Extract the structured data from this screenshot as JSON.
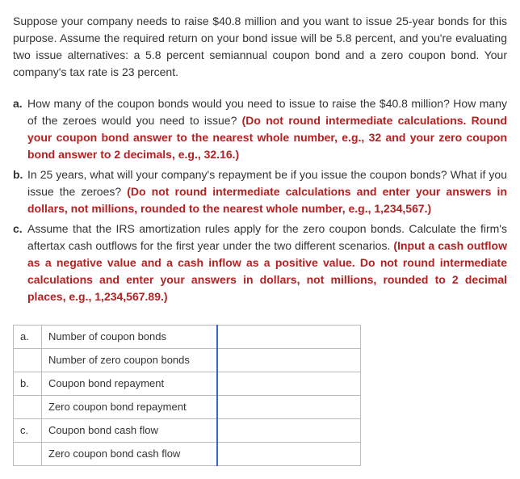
{
  "intro": "Suppose your company needs to raise $40.8 million and you want to issue 25-year bonds for this purpose. Assume the required return on your bond issue will be 5.8 percent, and you're evaluating two issue alternatives: a 5.8 percent semiannual coupon bond and a zero coupon bond. Your company's tax rate is 23 percent.",
  "questions": [
    {
      "letter": "a.",
      "plain": "How many of the coupon bonds would you need to issue to raise the $40.8 million? How many of the zeroes would you need to issue? ",
      "emph": "(Do not round intermediate calculations. Round your coupon bond answer to the nearest whole number, e.g., 32 and your zero coupon bond answer to 2 decimals, e.g., 32.16.)"
    },
    {
      "letter": "b.",
      "plain": "In 25 years, what will your company's repayment be if you issue the coupon bonds? What if you issue the zeroes? ",
      "emph": "(Do not round intermediate calculations and enter your answers in dollars, not millions, rounded to the nearest whole number, e.g., 1,234,567.)"
    },
    {
      "letter": "c.",
      "plain": "Assume that the IRS amortization rules apply for the zero coupon bonds. Calculate the firm's aftertax cash outflows for the first year under the two different scenarios. ",
      "emph": "(Input a cash outflow as a negative value and a cash inflow as a positive value. Do not round intermediate calculations and enter your answers in dollars, not millions, rounded to 2 decimal places, e.g., 1,234,567.89.)"
    }
  ],
  "table": {
    "rows": [
      {
        "letter": "a.",
        "label": "Number of coupon bonds",
        "value": ""
      },
      {
        "letter": "",
        "label": "Number of zero coupon bonds",
        "value": ""
      },
      {
        "letter": "b.",
        "label": "Coupon bond repayment",
        "value": ""
      },
      {
        "letter": "",
        "label": "Zero coupon bond repayment",
        "value": ""
      },
      {
        "letter": "c.",
        "label": "Coupon bond cash flow",
        "value": ""
      },
      {
        "letter": "",
        "label": "Zero coupon bond cash flow",
        "value": ""
      }
    ]
  }
}
